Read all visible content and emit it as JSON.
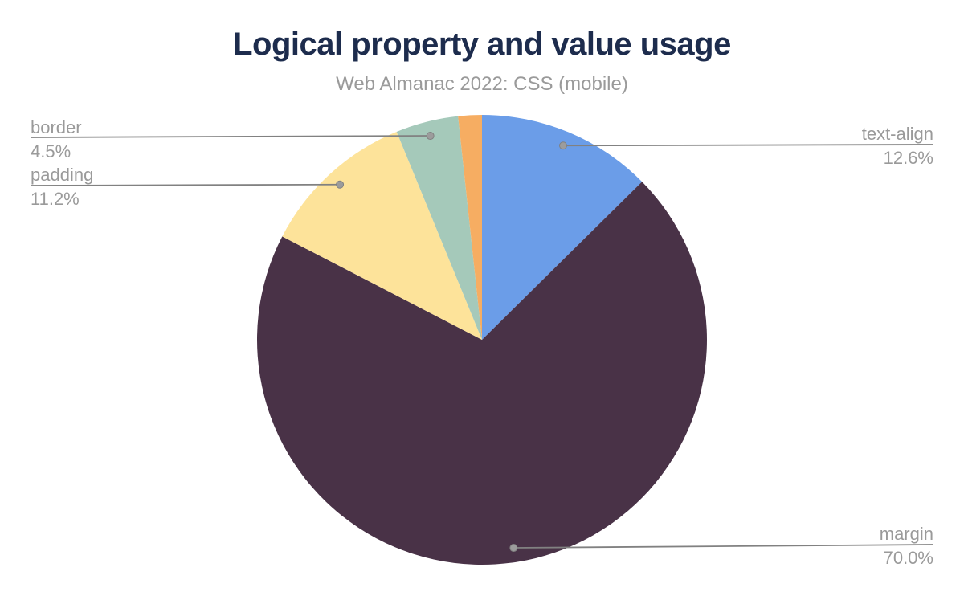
{
  "chart_data": {
    "type": "pie",
    "title": "Logical property and value usage",
    "subtitle": "Web Almanac 2022: CSS (mobile)",
    "unit": "%",
    "start_angle_deg": 0,
    "direction": "clockwise",
    "total": 100,
    "legend": "none",
    "label_style": "callout-leader-lines",
    "slices": [
      {
        "label": "text-align",
        "value": 12.6,
        "display": "12.6%",
        "color": "#6B9DE8",
        "label_side": "right"
      },
      {
        "label": "margin",
        "value": 70.0,
        "display": "70.0%",
        "color": "#493247",
        "label_side": "right"
      },
      {
        "label": "padding",
        "value": 11.2,
        "display": "11.2%",
        "color": "#FDE39A",
        "label_side": "left"
      },
      {
        "label": "border",
        "value": 4.5,
        "display": "4.5%",
        "color": "#A5C9BA",
        "label_side": "left"
      },
      {
        "label": "",
        "value": 1.7,
        "display": "",
        "color": "#F6AD62",
        "label_side": "none"
      }
    ],
    "colors": {
      "title": "#1D2C4D",
      "subtitle": "#9A9A9A",
      "label_text": "#9A9A9A",
      "leader_line": "#818181",
      "leader_dot": "#9C9C9C",
      "background": "#FFFFFF"
    }
  }
}
